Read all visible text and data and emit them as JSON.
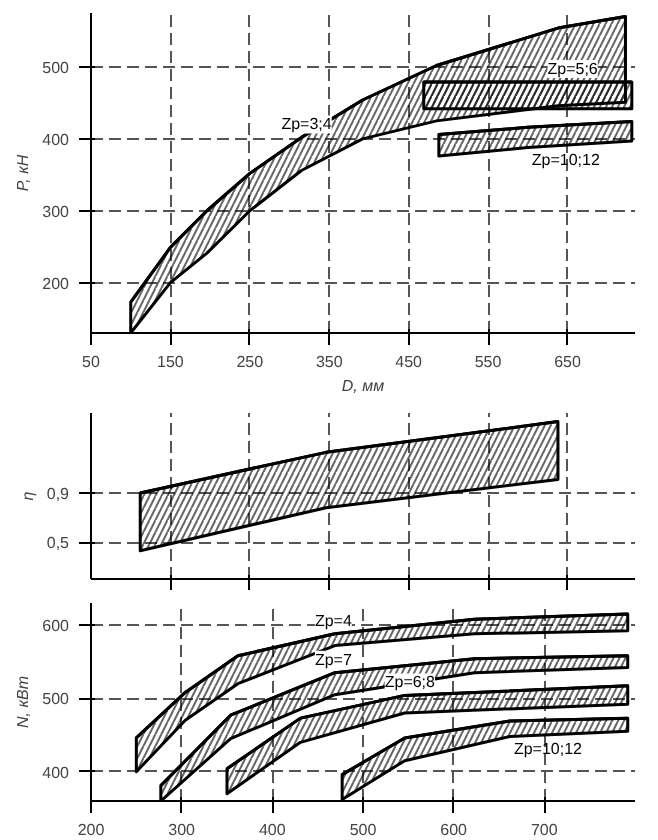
{
  "chart_data": [
    {
      "type": "line",
      "ylabel": "P, кН",
      "xlabel": "D, мм",
      "xlim": [
        50,
        735
      ],
      "xticks": [
        50,
        150,
        250,
        350,
        450,
        550,
        650
      ],
      "ylim": [
        130,
        575
      ],
      "yticks": [
        200,
        300,
        400,
        500
      ],
      "grid": true,
      "color": "#000000",
      "series": [
        {
          "name": "Zp=3;4",
          "x": [
            100,
            150,
            196,
            250,
            315,
            392,
            485,
            638,
            723
          ],
          "values": [
            173,
            249,
            300,
            352,
            402,
            454,
            502,
            554,
            570
          ],
          "upper": [
            173,
            249,
            300,
            352,
            402,
            454,
            502,
            554,
            570
          ],
          "lower": [
            130,
            200,
            241,
            300,
            356,
            400,
            425,
            446,
            451
          ]
        },
        {
          "name": "Zp=5;6",
          "x": [
            469,
            550,
            650,
            731
          ],
          "values": [
            479,
            479,
            479,
            479
          ],
          "upper": [
            479,
            479,
            479,
            479
          ],
          "lower": [
            442,
            442,
            442,
            442
          ]
        },
        {
          "name": "Zp=10;12",
          "x": [
            488,
            600,
            731
          ],
          "values": [
            406,
            416,
            424
          ],
          "upper": [
            406,
            416,
            424
          ],
          "lower": [
            376,
            388,
            397
          ]
        }
      ]
    },
    {
      "type": "line",
      "ylabel": "η",
      "xlim": [
        50,
        735
      ],
      "xticks": [
        150,
        250,
        350,
        450,
        550,
        650
      ],
      "ylim": [
        0.2,
        1.55
      ],
      "yticks": [
        {
          "value": 0.5,
          "label": "0,5"
        },
        {
          "value": 0.9,
          "label": "0,9"
        }
      ],
      "tick_labels": "y",
      "grid": true,
      "color": "#000000",
      "series": [
        {
          "x": [
            112,
            346,
            638
          ],
          "values": [
            0.9,
            1.23,
            1.48
          ],
          "upper": [
            0.9,
            1.23,
            1.48
          ],
          "lower": [
            0.43,
            0.78,
            1.01
          ]
        }
      ]
    },
    {
      "type": "line",
      "ylabel": "N, кВт",
      "xlim": [
        200,
        800
      ],
      "xticks": [
        200,
        300,
        400,
        500,
        600,
        700
      ],
      "ylim": [
        360,
        630
      ],
      "yticks": [
        400,
        500,
        600
      ],
      "grid": true,
      "color": "#000000",
      "series": [
        {
          "name": "Zp=4",
          "x": [
            250,
            304,
            362,
            469,
            623,
            792
          ],
          "values": [
            446,
            508,
            558,
            588,
            608,
            615
          ],
          "upper": [
            446,
            508,
            558,
            588,
            608,
            615
          ],
          "lower": [
            400,
            470,
            520,
            572,
            588,
            592
          ]
        },
        {
          "name": "Zp=7",
          "x": [
            277,
            354,
            469,
            623,
            792
          ],
          "values": [
            381,
            477,
            535,
            554,
            558
          ],
          "upper": [
            381,
            477,
            535,
            554,
            558
          ],
          "lower": [
            360,
            445,
            505,
            535,
            542
          ]
        },
        {
          "name": "Zp=6;8",
          "x": [
            350,
            431,
            546,
            792
          ],
          "values": [
            404,
            473,
            504,
            517
          ],
          "upper": [
            404,
            473,
            504,
            517
          ],
          "lower": [
            370,
            440,
            480,
            492
          ]
        },
        {
          "name": "Zp=10;12",
          "x": [
            477,
            546,
            662,
            792
          ],
          "values": [
            396,
            446,
            469,
            473
          ],
          "upper": [
            396,
            446,
            469,
            473
          ],
          "lower": [
            362,
            415,
            448,
            455
          ]
        }
      ]
    }
  ]
}
